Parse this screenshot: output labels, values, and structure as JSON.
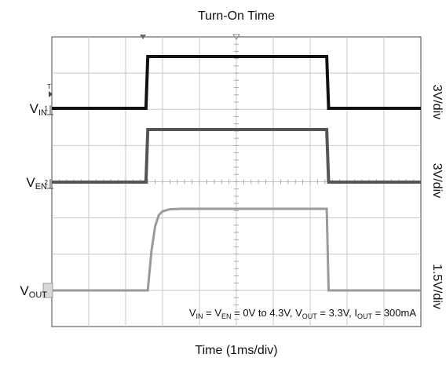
{
  "chart_data": {
    "type": "line",
    "title": "Turn-On Time",
    "xlabel": "Time (1ms/div)",
    "x_unit": "ms",
    "xlim": [
      0,
      10
    ],
    "divisions": {
      "x": 10,
      "y": 8
    },
    "grid": true,
    "series": [
      {
        "id": "vin",
        "label_main": "V",
        "label_sub": "IN",
        "scale": "3V/div",
        "channel_marker": "1",
        "color": "#111111",
        "points": [
          [
            0,
            0
          ],
          [
            2.55,
            0
          ],
          [
            2.6,
            4.3
          ],
          [
            7.45,
            4.3
          ],
          [
            7.5,
            0
          ],
          [
            10,
            0
          ]
        ]
      },
      {
        "id": "ven",
        "label_main": "V",
        "label_sub": "EN",
        "scale": "3V/div",
        "channel_marker": "2",
        "color": "#555555",
        "points": [
          [
            0,
            0
          ],
          [
            2.55,
            0
          ],
          [
            2.6,
            4.3
          ],
          [
            7.45,
            4.3
          ],
          [
            7.5,
            0
          ],
          [
            10,
            0
          ]
        ]
      },
      {
        "id": "vout",
        "label_main": "V",
        "label_sub": "OUT",
        "scale": "1.5V/div",
        "channel_marker": "",
        "color": "#9a9a9a",
        "points": [
          [
            0,
            0
          ],
          [
            2.6,
            0
          ],
          [
            2.7,
            1.6
          ],
          [
            2.8,
            2.6
          ],
          [
            2.9,
            3.05
          ],
          [
            3.0,
            3.2
          ],
          [
            3.2,
            3.28
          ],
          [
            3.5,
            3.3
          ],
          [
            7.45,
            3.3
          ],
          [
            7.5,
            0
          ],
          [
            10,
            0
          ]
        ]
      }
    ],
    "annotation": {
      "parts": [
        {
          "t": "V"
        },
        {
          "t": "IN",
          "sub": true
        },
        {
          "t": " = V"
        },
        {
          "t": "EN",
          "sub": true
        },
        {
          "t": " = 0V to 4.3V, V"
        },
        {
          "t": "OUT",
          "sub": true
        },
        {
          "t": " = 3.3V, I"
        },
        {
          "t": "OUT",
          "sub": true
        },
        {
          "t": " = 300mA"
        }
      ]
    }
  }
}
